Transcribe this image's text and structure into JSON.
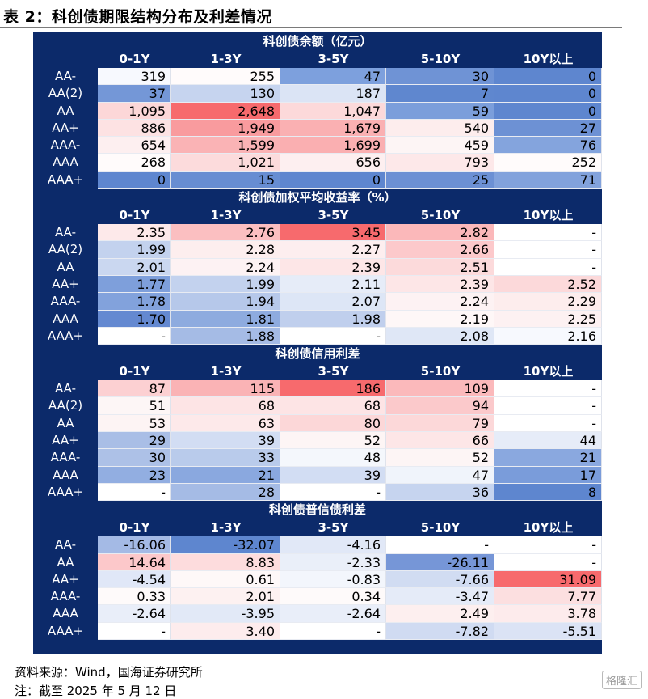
{
  "title": "表 2：科创债期限结构分布及利差情况",
  "columns": [
    "0-1Y",
    "1-3Y",
    "3-5Y",
    "5-10Y",
    "10Y以上"
  ],
  "sections": [
    {
      "title": "科创债余额（亿元）",
      "rows": [
        {
          "label": "AA-",
          "values": [
            "319",
            "255",
            "47",
            "30",
            "0"
          ],
          "colors": [
            "#f7f9fe",
            "#fffbfb",
            "#7da0dd",
            "#6f93d5",
            "#5e86cf"
          ]
        },
        {
          "label": "AA(2)",
          "values": [
            "37",
            "130",
            "187",
            "7",
            "0"
          ],
          "colors": [
            "#7497d7",
            "#c6d4ef",
            "#dbe4f5",
            "#5f87cf",
            "#5e86cf"
          ]
        },
        {
          "label": "AA",
          "values": [
            "1,095",
            "2,648",
            "1,047",
            "59",
            "0"
          ],
          "colors": [
            "#fcd7d8",
            "#f76a6d",
            "#fcd9da",
            "#7b9edb",
            "#5e86cf"
          ]
        },
        {
          "label": "AA+",
          "values": [
            "886",
            "1,949",
            "1,679",
            "540",
            "27"
          ],
          "colors": [
            "#fde2e3",
            "#f99b9e",
            "#fab0b2",
            "#fdeded",
            "#6d91d4"
          ]
        },
        {
          "label": "AAA-",
          "values": [
            "654",
            "1,599",
            "1,699",
            "459",
            "76"
          ],
          "colors": [
            "#fdeff0",
            "#fab3b5",
            "#faafb1",
            "#fdf5f5",
            "#84a4dd"
          ]
        },
        {
          "label": "AAA",
          "values": [
            "268",
            "1,021",
            "656",
            "793",
            "252"
          ],
          "colors": [
            "#fffbfb",
            "#fcdbdc",
            "#fdeff0",
            "#fde8e9",
            "#fffbfb"
          ]
        },
        {
          "label": "AAA+",
          "values": [
            "0",
            "15",
            "0",
            "25",
            "71"
          ],
          "colors": [
            "#5e86cf",
            "#678dd2",
            "#5e86cf",
            "#6c90d4",
            "#82a2dc"
          ]
        }
      ]
    },
    {
      "title": "科创债加权平均收益率（%）",
      "rows": [
        {
          "label": "AA-",
          "values": [
            "2.35",
            "2.76",
            "3.45",
            "2.82",
            "-"
          ],
          "colors": [
            "#fde9ea",
            "#fbbfc1",
            "#f76a6d",
            "#fbb8ba",
            "#ffffff"
          ]
        },
        {
          "label": "AA(2)",
          "values": [
            "1.99",
            "2.28",
            "2.27",
            "2.66",
            "-"
          ],
          "colors": [
            "#c3d2ee",
            "#fdeeee",
            "#fdeeef",
            "#fcc9cb",
            "#ffffff"
          ]
        },
        {
          "label": "AA",
          "values": [
            "2.01",
            "2.24",
            "2.39",
            "2.51",
            "-"
          ],
          "colors": [
            "#cad7f0",
            "#fdf2f3",
            "#fde6e7",
            "#fcdadb",
            "#ffffff"
          ]
        },
        {
          "label": "AA+",
          "values": [
            "1.77",
            "1.99",
            "2.11",
            "2.39",
            "2.52"
          ],
          "colors": [
            "#7e9fdb",
            "#c3d2ee",
            "#e6ecf8",
            "#fde6e7",
            "#fcd9da"
          ]
        },
        {
          "label": "AAA-",
          "values": [
            "1.78",
            "1.94",
            "2.07",
            "2.24",
            "2.29"
          ],
          "colors": [
            "#82a2dc",
            "#b6c8ea",
            "#dde6f6",
            "#fdf2f3",
            "#fdeded"
          ]
        },
        {
          "label": "AAA",
          "values": [
            "1.70",
            "1.81",
            "1.98",
            "2.19",
            "2.25"
          ],
          "colors": [
            "#6489d1",
            "#8eabdf",
            "#c0cfed",
            "#fef7f7",
            "#fdf1f2"
          ]
        },
        {
          "label": "AAA+",
          "values": [
            "-",
            "1.88",
            "-",
            "2.08",
            "2.16"
          ],
          "colors": [
            "#ffffff",
            "#a5bbe5",
            "#ffffff",
            "#dfe7f6",
            "#f7f9fe"
          ]
        }
      ]
    },
    {
      "title": "科创债信用利差",
      "rows": [
        {
          "label": "AA-",
          "values": [
            "87",
            "115",
            "186",
            "109",
            "-"
          ],
          "colors": [
            "#fcd0d2",
            "#fab3b5",
            "#f76a6d",
            "#fbb9bb",
            "#ffffff"
          ]
        },
        {
          "label": "AA(2)",
          "values": [
            "51",
            "68",
            "68",
            "94",
            "-"
          ],
          "colors": [
            "#fdf6f6",
            "#fde4e5",
            "#fde4e5",
            "#fbc9cb",
            "#ffffff"
          ]
        },
        {
          "label": "AA",
          "values": [
            "53",
            "63",
            "80",
            "79",
            "-"
          ],
          "colors": [
            "#fdf4f4",
            "#fde9ea",
            "#fcd7d8",
            "#fcd8d9",
            "#ffffff"
          ]
        },
        {
          "label": "AA+",
          "values": [
            "29",
            "39",
            "52",
            "66",
            "44"
          ],
          "colors": [
            "#a9bee6",
            "#d2ddf3",
            "#fdf5f5",
            "#fde6e7",
            "#e6ecf8"
          ]
        },
        {
          "label": "AAA-",
          "values": [
            "30",
            "33",
            "48",
            "52",
            "21"
          ],
          "colors": [
            "#adc1e7",
            "#b9cbeb",
            "#f4f7fc",
            "#fdf5f5",
            "#8aa8df"
          ]
        },
        {
          "label": "AAA",
          "values": [
            "23",
            "21",
            "39",
            "47",
            "17"
          ],
          "colors": [
            "#92aee1",
            "#8aa8df",
            "#d2ddf3",
            "#f0f4fb",
            "#7a9cda"
          ]
        },
        {
          "label": "AAA+",
          "values": [
            "-",
            "28",
            "-",
            "36",
            "8"
          ],
          "colors": [
            "#ffffff",
            "#a5bbe5",
            "#ffffff",
            "#c6d4ef",
            "#5e86cf"
          ]
        }
      ]
    },
    {
      "title": "科创债普信债利差",
      "rows": [
        {
          "label": "AA-",
          "values": [
            "-16.06",
            "-32.07",
            "-4.16",
            "-",
            "-"
          ],
          "colors": [
            "#a4bae5",
            "#5e86cf",
            "#e1e8f7",
            "#ffffff",
            "#ffffff"
          ]
        },
        {
          "label": "AA",
          "values": [
            "14.64",
            "8.83",
            "-2.33",
            "-26.11",
            "-"
          ],
          "colors": [
            "#fcc8ca",
            "#fddcdd",
            "#eaeff9",
            "#7696d7",
            "#ffffff"
          ]
        },
        {
          "label": "AA+",
          "values": [
            "-4.54",
            "0.61",
            "-0.83",
            "-7.66",
            "31.09"
          ],
          "colors": [
            "#e0e7f7",
            "#fef8f8",
            "#f3f6fc",
            "#d1dcf2",
            "#f76a6d"
          ]
        },
        {
          "label": "AAA-",
          "values": [
            "0.33",
            "2.01",
            "0.34",
            "-3.47",
            "7.77"
          ],
          "colors": [
            "#fefafa",
            "#fdf1f1",
            "#fefafa",
            "#e5ebf8",
            "#fcdfe0"
          ]
        },
        {
          "label": "AAA",
          "values": [
            "-2.64",
            "-3.95",
            "-2.64",
            "2.49",
            "3.78"
          ],
          "colors": [
            "#e9eef9",
            "#e2e9f7",
            "#e9eef9",
            "#fdefef",
            "#fdebec"
          ]
        },
        {
          "label": "AAA+",
          "values": [
            "-",
            "3.40",
            "-",
            "-7.82",
            "-5.51"
          ],
          "colors": [
            "#ffffff",
            "#fdeced",
            "#ffffff",
            "#d0dbf2",
            "#dbe3f5"
          ]
        }
      ]
    }
  ],
  "footer": {
    "source": "资料来源：Wind，国海证券研究所",
    "note": "注：截至 2025 年 5 月 12 日"
  },
  "watermark": "格隆汇"
}
